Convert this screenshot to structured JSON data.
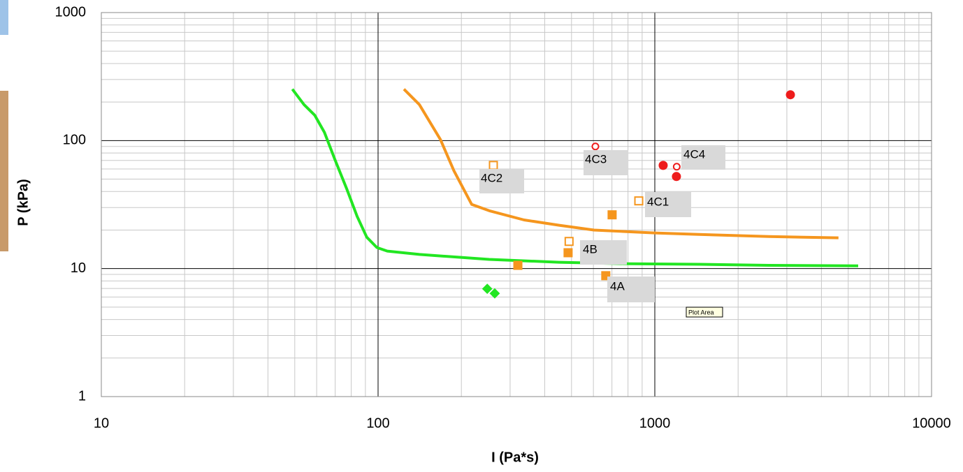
{
  "chart_data": {
    "type": "scatter",
    "xlabel": "I (Pa*s)",
    "ylabel": "P (kPa)",
    "xscale": "log",
    "yscale": "log",
    "xlim": [
      10,
      10000
    ],
    "ylim": [
      1,
      1000
    ],
    "xticks": [
      10,
      100,
      1000,
      10000
    ],
    "yticks": [
      1,
      10,
      100,
      1000
    ],
    "grid": true,
    "minor_grid": true,
    "series": [
      {
        "mode": "line",
        "color": "#22e622",
        "x": [
          49,
          54,
          59,
          64,
          70,
          77,
          84,
          91,
          99,
          108,
          141,
          252,
          451,
          807,
          1443,
          2580,
          5430
        ],
        "values": [
          252,
          191,
          158,
          116,
          70,
          42,
          25.6,
          17.6,
          14.6,
          13.7,
          12.9,
          11.8,
          11.2,
          10.9,
          10.8,
          10.6,
          10.5
        ]
      },
      {
        "mode": "line",
        "color": "#f5961e",
        "x": [
          124,
          141,
          168,
          188,
          218,
          252,
          337,
          451,
          603,
          1000,
          1443,
          2580,
          4610
        ],
        "values": [
          252,
          191,
          102,
          58,
          31.7,
          28.3,
          24,
          21.8,
          20,
          19,
          18.5,
          17.8,
          17.4
        ]
      },
      {
        "mode": "marker",
        "marker": "diamond",
        "filled": true,
        "color": "#22e622",
        "x": [
          248,
          264
        ],
        "values": [
          6.95,
          6.4
        ]
      },
      {
        "mode": "marker",
        "marker": "square",
        "filled": true,
        "color": "#f5961e",
        "x": [
          320,
          486,
          701,
          665
        ],
        "values": [
          10.6,
          13.3,
          26.3,
          8.8
        ]
      },
      {
        "mode": "marker",
        "marker": "square",
        "filled": false,
        "color": "#f5961e",
        "x": [
          261,
          490,
          875
        ],
        "values": [
          64,
          16.3,
          33.8
        ]
      },
      {
        "mode": "marker",
        "marker": "circle",
        "filled": true,
        "color": "#ee1c1c",
        "x": [
          1072,
          1197,
          3090
        ],
        "values": [
          64,
          52.4,
          228
        ]
      },
      {
        "mode": "marker",
        "marker": "circle",
        "filled": false,
        "color": "#ee1c1c",
        "x": [
          610,
          1200
        ],
        "values": [
          90,
          62.5
        ]
      }
    ],
    "annotations": [
      "4C2",
      "4C3",
      "4C4",
      "4C1",
      "4B",
      "4A"
    ],
    "tooltip": "Plot Area"
  }
}
